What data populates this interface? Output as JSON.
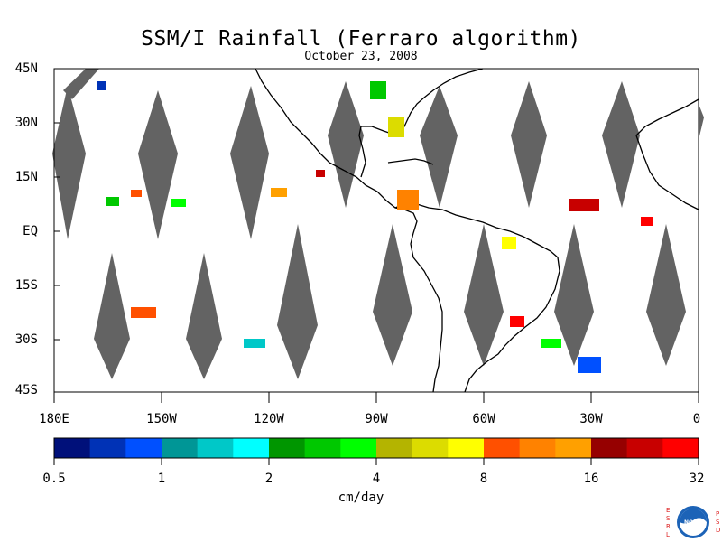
{
  "header": {
    "title": "SSM/I Rainfall (Ferraro algorithm)",
    "date": "October 23, 2008"
  },
  "map": {
    "lat_labels": [
      "45N",
      "30N",
      "15N",
      "EQ",
      "15S",
      "30S",
      "45S"
    ],
    "lon_labels": [
      "180E",
      "150W",
      "120W",
      "90W",
      "60W",
      "30W",
      "0"
    ]
  },
  "colorbar": {
    "colors": [
      "#00107a",
      "#0032b6",
      "#0050ff",
      "#009696",
      "#00c8c8",
      "#00ffff",
      "#009600",
      "#00c800",
      "#00ff00",
      "#b4b400",
      "#dcdc00",
      "#ffff00",
      "#ff5000",
      "#ff8200",
      "#ffa000",
      "#960000",
      "#c80000",
      "#ff0000"
    ],
    "tick_labels": [
      "0.5",
      "1",
      "2",
      "4",
      "8",
      "16",
      "32"
    ],
    "unit": "cm/day"
  },
  "logo": {
    "left_letters": [
      "E",
      "S",
      "R",
      "L"
    ],
    "right_letters": [
      "P",
      "S",
      "D"
    ],
    "badge_text": "NOAA"
  }
}
